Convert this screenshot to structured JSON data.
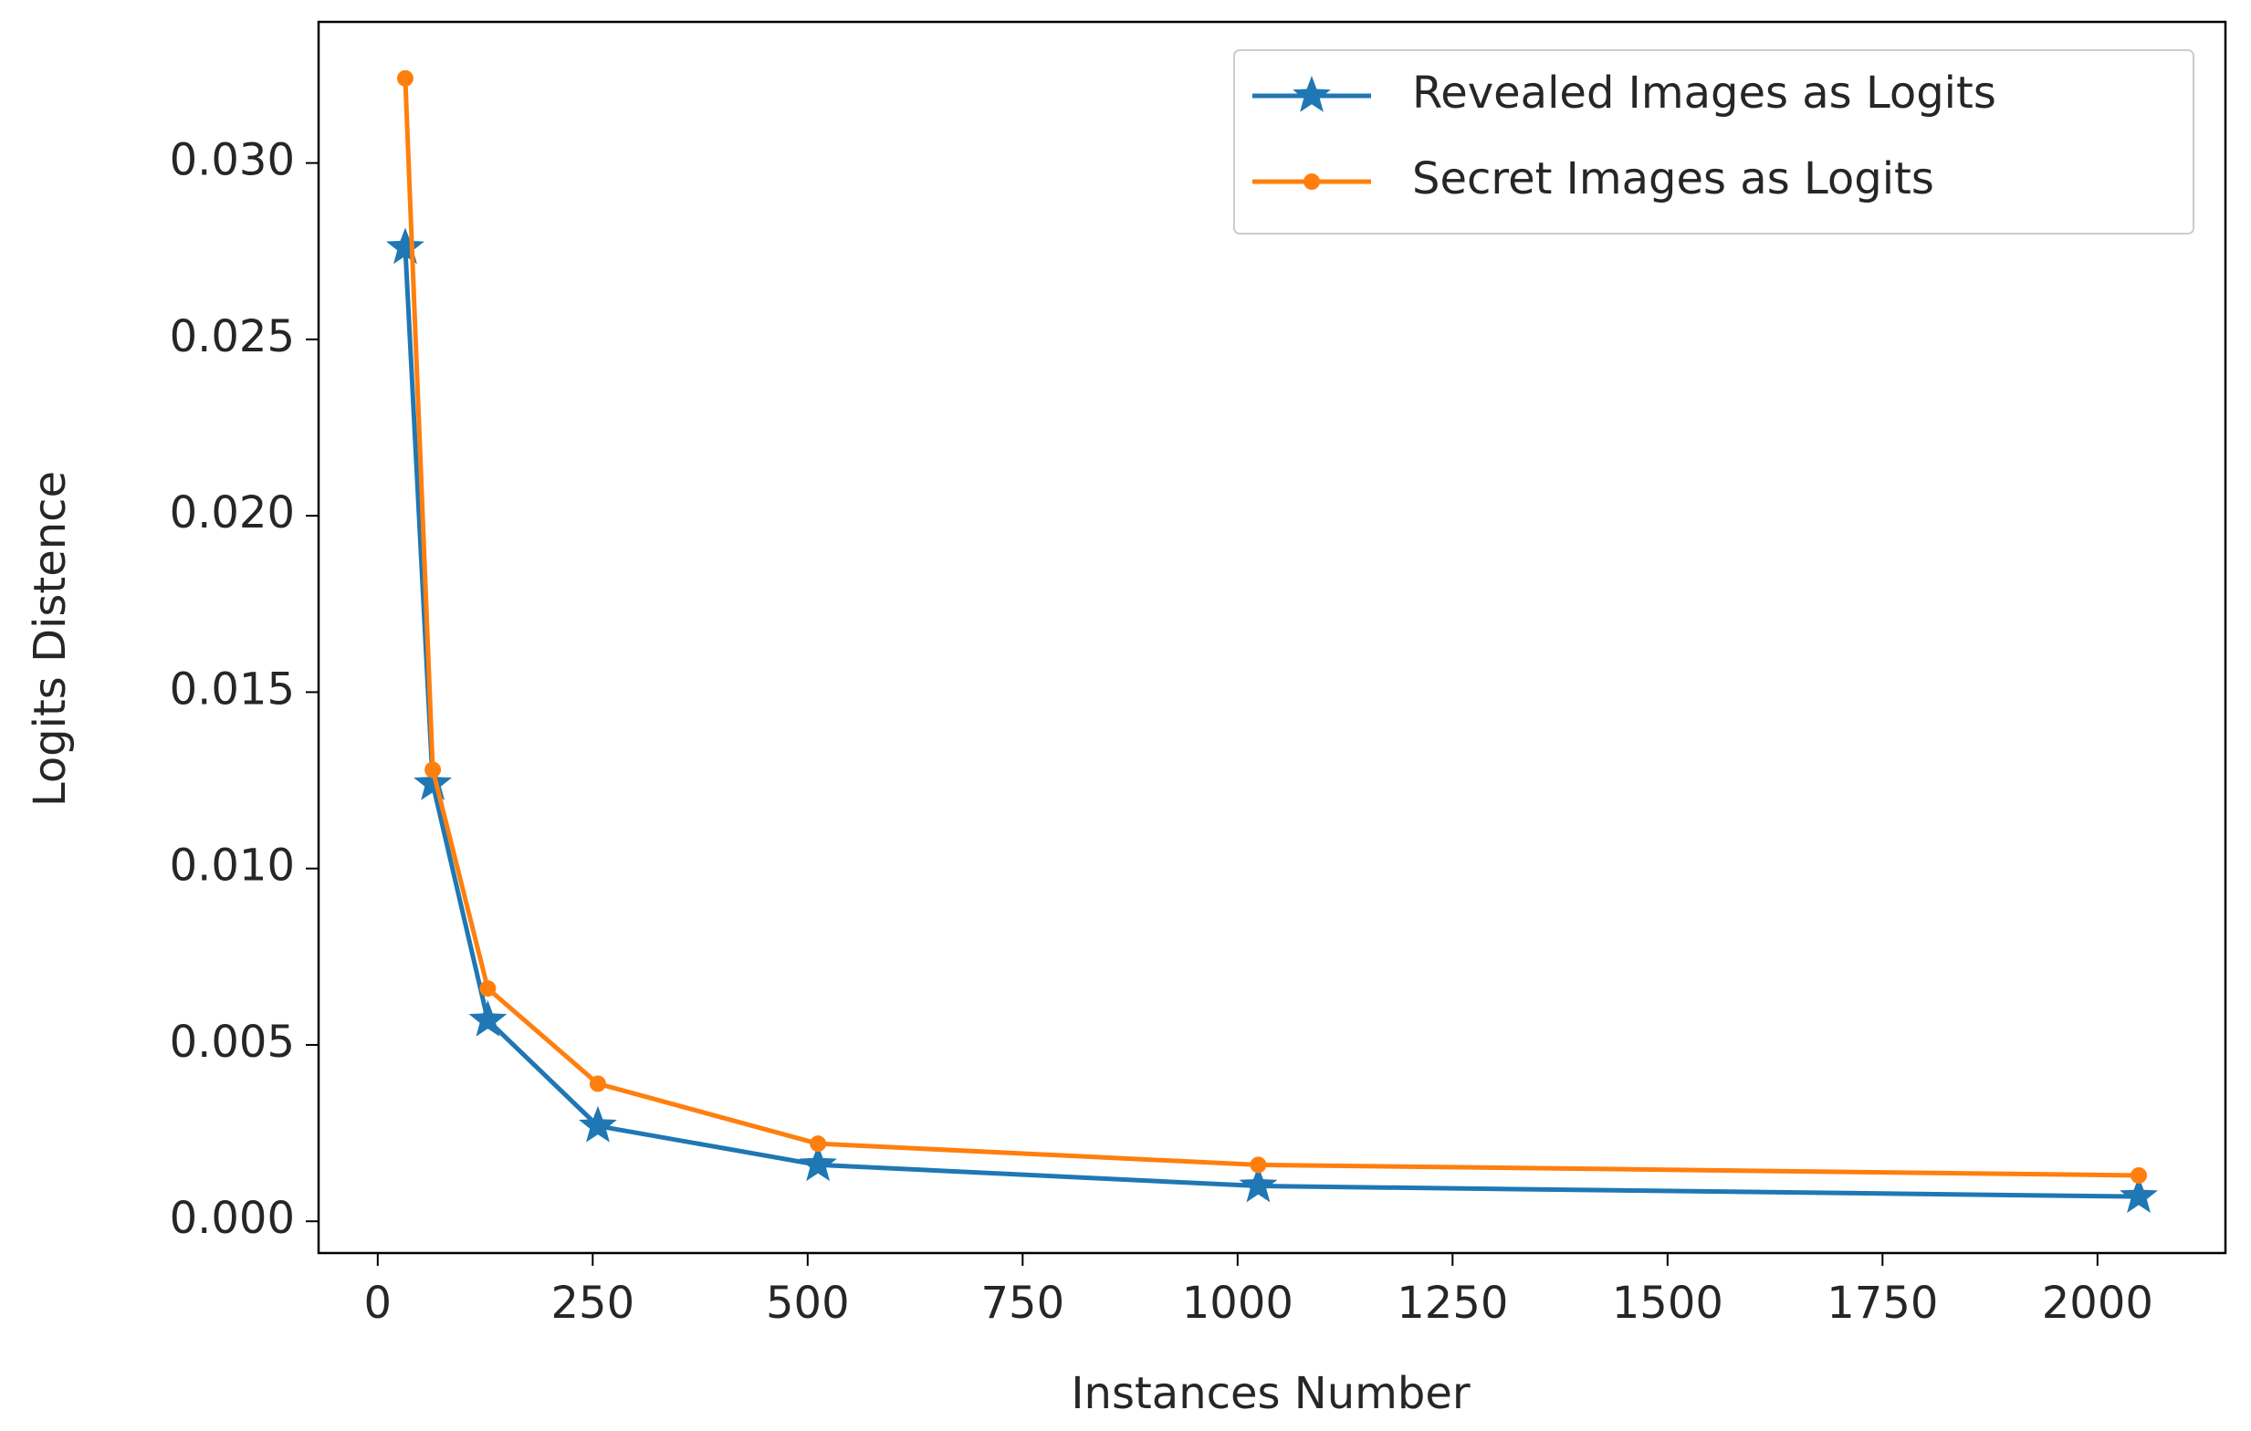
{
  "chart_data": {
    "type": "line",
    "xlabel": "Instances Number",
    "ylabel": "Logits Distence",
    "x": [
      32,
      64,
      128,
      256,
      512,
      1024,
      2048
    ],
    "series": [
      {
        "name": "Revealed Images as Logits",
        "color": "#1f77b4",
        "marker": "star",
        "values": [
          0.0276,
          0.0124,
          0.0057,
          0.0027,
          0.0016,
          0.001,
          0.0007
        ]
      },
      {
        "name": "Secret Images as Logits",
        "color": "#ff7f0e",
        "marker": "point",
        "values": [
          0.0324,
          0.0128,
          0.0066,
          0.0039,
          0.0022,
          0.0016,
          0.0013
        ]
      }
    ],
    "xlim": [
      -68.8,
      2148.8
    ],
    "xticks": [
      0,
      250,
      500,
      750,
      1000,
      1250,
      1500,
      1750,
      2000
    ],
    "ylim": [
      -0.0009,
      0.034
    ],
    "yticks": [
      {
        "value": 0,
        "label": "0.000"
      },
      {
        "value": 0.005,
        "label": "0.005"
      },
      {
        "value": 0.01,
        "label": "0.010"
      },
      {
        "value": 0.015,
        "label": "0.015"
      },
      {
        "value": 0.02,
        "label": "0.020"
      },
      {
        "value": 0.025,
        "label": "0.025"
      },
      {
        "value": 0.03,
        "label": "0.030"
      }
    ],
    "legend": "upper right",
    "grid": false
  }
}
